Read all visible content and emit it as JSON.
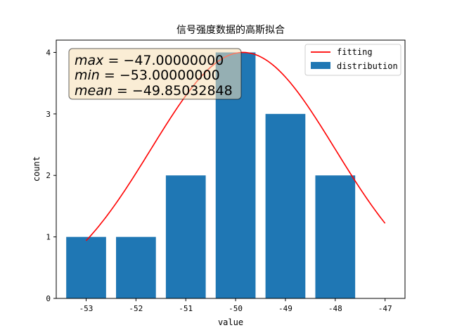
{
  "chart_data": {
    "type": "bar",
    "title": "信号强度数据的高斯拟合",
    "xlabel": "value",
    "ylabel": "count",
    "xlim": [
      -53.6,
      -46.6
    ],
    "ylim": [
      0,
      4.2
    ],
    "xticks": [
      -53,
      -52,
      -51,
      -50,
      -49,
      -48,
      -47
    ],
    "yticks": [
      0,
      1,
      2,
      3,
      4
    ],
    "bar_width": 0.8,
    "series": [
      {
        "name": "distribution",
        "type": "bar",
        "color": "#1f77b4",
        "x": [
          -53,
          -52,
          -51,
          -50,
          -49,
          -48
        ],
        "values": [
          1,
          1,
          2,
          4,
          3,
          2
        ]
      },
      {
        "name": "fitting",
        "type": "line",
        "color": "#ff0000",
        "gaussian": {
          "amplitude": 4.0,
          "mu": -49.85,
          "sigma": 1.85
        },
        "x_range": [
          -53,
          -47
        ]
      }
    ],
    "legend": {
      "position": "top-right",
      "entries": [
        "fitting",
        "distribution"
      ]
    },
    "annotations": [
      {
        "var": "max",
        "text": " = −47.00000000"
      },
      {
        "var": "min",
        "text": " = −53.00000000"
      },
      {
        "var": "mean",
        "text": " = −49.85032848"
      }
    ],
    "annotation_box": {
      "facecolor": "#f5deb3",
      "edgecolor": "#000000",
      "opacity": 0.5
    },
    "grid": false
  }
}
